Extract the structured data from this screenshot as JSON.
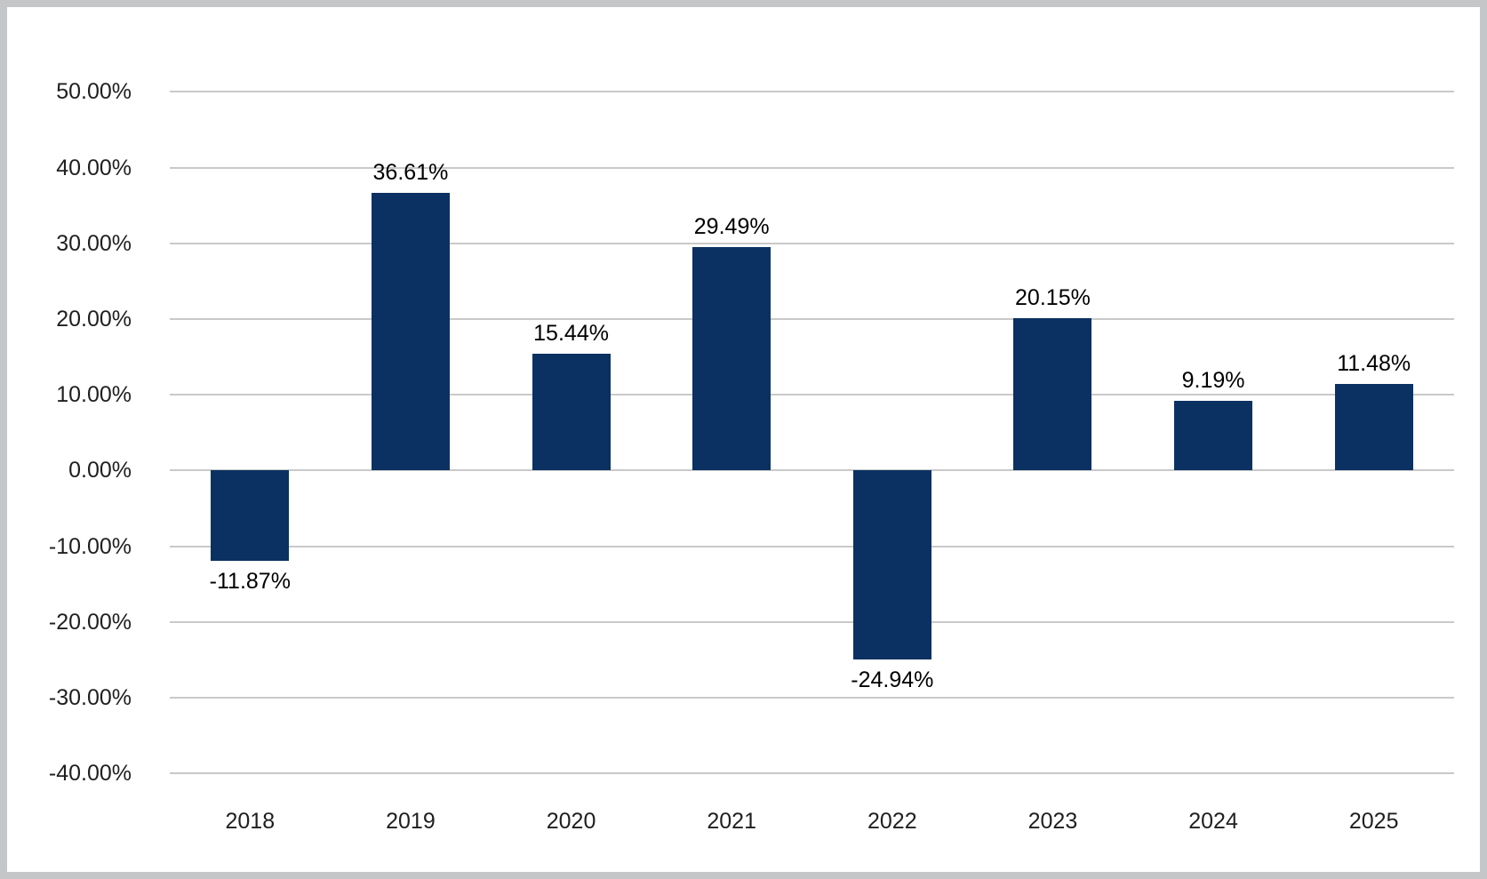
{
  "window": {
    "background_color": "#ffffff",
    "frame_border_color": "#c5c6c8"
  },
  "chart_data": {
    "type": "bar",
    "title": "",
    "categories": [
      "2018",
      "2019",
      "2020",
      "2021",
      "2022",
      "2023",
      "2024",
      "2025"
    ],
    "values": [
      -11.87,
      36.61,
      15.44,
      29.49,
      -24.94,
      20.15,
      9.19,
      11.48
    ],
    "data_labels": [
      "-11.87%",
      "36.61%",
      "15.44%",
      "29.49%",
      "-24.94%",
      "20.15%",
      "9.19%",
      "11.48%"
    ],
    "xlabel": "",
    "ylabel": "",
    "ylim": [
      -40,
      50
    ],
    "y_ticks": [
      {
        "value": 50,
        "label": "50.00%"
      },
      {
        "value": 40,
        "label": "40.00%"
      },
      {
        "value": 30,
        "label": "30.00%"
      },
      {
        "value": 20,
        "label": "20.00%"
      },
      {
        "value": 10,
        "label": "10.00%"
      },
      {
        "value": 0,
        "label": "0.00%"
      },
      {
        "value": -10,
        "label": "-10.00%"
      },
      {
        "value": -20,
        "label": "-20.00%"
      },
      {
        "value": -30,
        "label": "-30.00%"
      },
      {
        "value": -40,
        "label": "-40.00%"
      }
    ],
    "grid": true,
    "legend_position": "none",
    "bar_color": "#0a3161",
    "gridline_color": "#c9c9c9",
    "axis_text_color": "#1f1f1f",
    "data_label_color": "#000000"
  }
}
